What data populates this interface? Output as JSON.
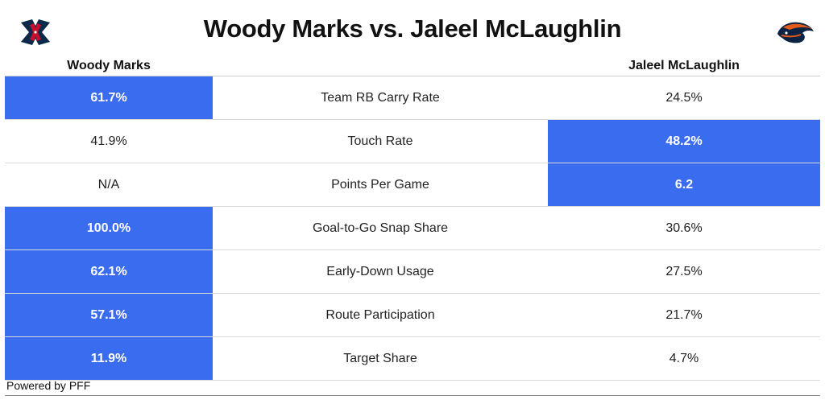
{
  "title": "Woody Marks vs. Jaleel McLaughlin",
  "logos": {
    "left": "houston-texans-logo",
    "right": "denver-broncos-logo"
  },
  "colors": {
    "highlight": "#3a6cf0",
    "texans_navy": "#0b2a4a",
    "texans_red": "#c8102e",
    "broncos_orange": "#e45a1a",
    "broncos_navy": "#0a2343"
  },
  "columns": {
    "left": "Woody Marks",
    "right": "Jaleel McLaughlin"
  },
  "rows": [
    {
      "left": "61.7%",
      "metric": "Team RB Carry Rate",
      "right": "24.5%",
      "highlight": "left"
    },
    {
      "left": "41.9%",
      "metric": "Touch Rate",
      "right": "48.2%",
      "highlight": "right"
    },
    {
      "left": "N/A",
      "metric": "Points Per Game",
      "right": "6.2",
      "highlight": "right"
    },
    {
      "left": "100.0%",
      "metric": "Goal-to-Go Snap Share",
      "right": "30.6%",
      "highlight": "left"
    },
    {
      "left": "62.1%",
      "metric": "Early-Down Usage",
      "right": "27.5%",
      "highlight": "left"
    },
    {
      "left": "57.1%",
      "metric": "Route Participation",
      "right": "21.7%",
      "highlight": "left"
    },
    {
      "left": "11.9%",
      "metric": "Target Share",
      "right": "4.7%",
      "highlight": "left"
    }
  ],
  "footer": "Powered by PFF"
}
